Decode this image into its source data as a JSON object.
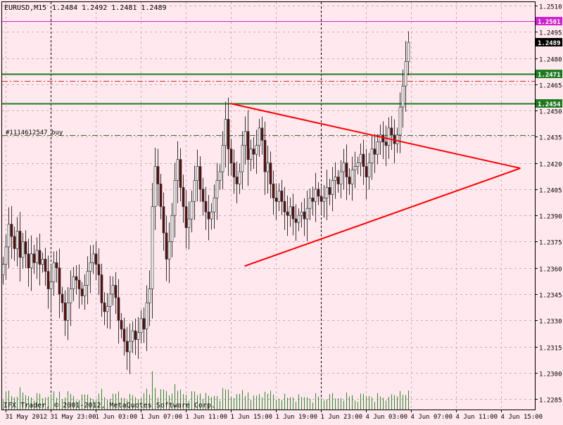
{
  "header": {
    "symbol_timeframe": "EURUSD,M15",
    "ohlc": "1.2484 1.2492 1.2481 1.2489"
  },
  "footer": {
    "copyright": "IFX Trader, © 2001-2012, MetaQuotes Software Corp."
  },
  "order_label": "#1114612547 buy",
  "colors": {
    "background": "#ffe8ee",
    "grid": "#c8aeb4",
    "axis": "#000000",
    "bull_candle": "#ffffff",
    "bear_candle": "#5a0a0a",
    "wick": "#333333",
    "volume": "#2d8a2d",
    "trend_line": "#ff0000",
    "support_level": "#1f7a1f",
    "alert_level": "#cc22cc",
    "order_line": "#2f6f2f",
    "stop_line": "#cc3333",
    "current_price_bg": "#000000",
    "price_tag_text": "#ffffff"
  },
  "chart_data": {
    "type": "candlestick",
    "symbol": "EURUSD",
    "timeframe": "M15",
    "ylim": [
      1.2279,
      1.2512
    ],
    "y_ticks": [
      "1.2510",
      "1.2495",
      "1.2480",
      "1.2465",
      "1.2450",
      "1.2435",
      "1.2420",
      "1.2405",
      "1.2390",
      "1.2375",
      "1.2360",
      "1.2345",
      "1.2330",
      "1.2315",
      "1.2300",
      "1.2285"
    ],
    "x_ticks": [
      {
        "label": "31 May 2012",
        "bar": 1
      },
      {
        "label": "31 May 23:00",
        "bar": 17
      },
      {
        "label": "1 Jun 03:00",
        "bar": 33
      },
      {
        "label": "1 Jun 07:00",
        "bar": 49
      },
      {
        "label": "1 Jun 11:00",
        "bar": 65
      },
      {
        "label": "1 Jun 15:00",
        "bar": 81
      },
      {
        "label": "1 Jun 19:00",
        "bar": 97
      },
      {
        "label": "1 Jun 23:00",
        "bar": 113
      },
      {
        "label": "4 Jun 03:00",
        "bar": 129
      },
      {
        "label": "4 Jun 07:00",
        "bar": 145
      },
      {
        "label": "4 Jun 11:00",
        "bar": 161
      },
      {
        "label": "4 Jun 15:00",
        "bar": 177
      }
    ],
    "grid_v_bars": [
      17,
      113
    ],
    "closes": [
      1.2362,
      1.2372,
      1.2385,
      1.2378,
      1.2371,
      1.2381,
      1.2366,
      1.2375,
      1.2368,
      1.236,
      1.2368,
      1.2363,
      1.237,
      1.2362,
      1.2365,
      1.2358,
      1.2348,
      1.2352,
      1.2363,
      1.236,
      1.2345,
      1.234,
      1.233,
      1.234,
      1.2348,
      1.2355,
      1.2353,
      1.2348,
      1.2344,
      1.235,
      1.2358,
      1.2363,
      1.2368,
      1.2362,
      1.2356,
      1.234,
      1.2335,
      1.2338,
      1.2345,
      1.235,
      1.2343,
      1.233,
      1.2325,
      1.2318,
      1.2312,
      1.2318,
      1.2324,
      1.2319,
      1.2323,
      1.2331,
      1.2325,
      1.234,
      1.2348,
      1.2395,
      1.2418,
      1.2408,
      1.2395,
      1.238,
      1.2365,
      1.2375,
      1.239,
      1.241,
      1.2422,
      1.2406,
      1.2395,
      1.2383,
      1.2388,
      1.2398,
      1.241,
      1.2418,
      1.2405,
      1.2398,
      1.2392,
      1.2388,
      1.2392,
      1.24,
      1.241,
      1.2415,
      1.243,
      1.2445,
      1.2428,
      1.242,
      1.2412,
      1.2408,
      1.2415,
      1.243,
      1.2438,
      1.2422,
      1.2428,
      1.2425,
      1.243,
      1.244,
      1.2433,
      1.2415,
      1.242,
      1.2408,
      1.24,
      1.2398,
      1.2404,
      1.2398,
      1.2392,
      1.239,
      1.2395,
      1.2388,
      1.2386,
      1.239,
      1.2392,
      1.2388,
      1.2394,
      1.24,
      1.2398,
      1.2405,
      1.2401,
      1.2398,
      1.24,
      1.2406,
      1.2402,
      1.241,
      1.2412,
      1.2408,
      1.2415,
      1.242,
      1.2412,
      1.2408,
      1.2416,
      1.2418,
      1.242,
      1.2425,
      1.2418,
      1.2412,
      1.242,
      1.2428,
      1.2425,
      1.2432,
      1.2436,
      1.2432,
      1.243,
      1.244,
      1.2436,
      1.2431,
      1.2436,
      1.2452,
      1.2464,
      1.2478,
      1.2489
    ],
    "opens": [
      1.2356,
      1.2362,
      1.2372,
      1.2385,
      1.2378,
      1.2371,
      1.2381,
      1.2366,
      1.2375,
      1.2368,
      1.236,
      1.2368,
      1.2363,
      1.237,
      1.2362,
      1.2365,
      1.2358,
      1.2348,
      1.2352,
      1.2363,
      1.236,
      1.2345,
      1.234,
      1.233,
      1.234,
      1.2348,
      1.2355,
      1.2353,
      1.2348,
      1.2344,
      1.235,
      1.2358,
      1.2363,
      1.2368,
      1.2362,
      1.2356,
      1.234,
      1.2335,
      1.2338,
      1.2345,
      1.235,
      1.2343,
      1.233,
      1.2325,
      1.2318,
      1.2312,
      1.2318,
      1.2324,
      1.2319,
      1.2323,
      1.2331,
      1.2325,
      1.234,
      1.2348,
      1.2395,
      1.2418,
      1.2408,
      1.2395,
      1.238,
      1.2365,
      1.2375,
      1.239,
      1.241,
      1.2422,
      1.2406,
      1.2395,
      1.2383,
      1.2388,
      1.2398,
      1.241,
      1.2418,
      1.2405,
      1.2398,
      1.2392,
      1.2388,
      1.2392,
      1.24,
      1.241,
      1.2415,
      1.243,
      1.2445,
      1.2428,
      1.242,
      1.2412,
      1.2408,
      1.2415,
      1.243,
      1.2438,
      1.2422,
      1.2428,
      1.2425,
      1.243,
      1.244,
      1.2433,
      1.2415,
      1.242,
      1.2408,
      1.24,
      1.2398,
      1.2404,
      1.2398,
      1.2392,
      1.239,
      1.2395,
      1.2388,
      1.2386,
      1.239,
      1.2392,
      1.2388,
      1.2394,
      1.24,
      1.2398,
      1.2405,
      1.2401,
      1.2398,
      1.24,
      1.2406,
      1.2402,
      1.241,
      1.2412,
      1.2408,
      1.2415,
      1.242,
      1.2412,
      1.2408,
      1.2416,
      1.2418,
      1.242,
      1.2425,
      1.2418,
      1.2412,
      1.242,
      1.2428,
      1.2425,
      1.2432,
      1.2436,
      1.2432,
      1.243,
      1.244,
      1.2436,
      1.2431,
      1.2436,
      1.2452,
      1.2464,
      1.2478
    ]
  },
  "levels": [
    {
      "name": "alert",
      "price": 1.2501,
      "label": "1.2501",
      "style": "solid"
    },
    {
      "name": "resistance-upper",
      "price": 1.2471,
      "label": "1.2471",
      "style": "solid"
    },
    {
      "name": "stop",
      "price": 1.2467,
      "label": "",
      "style": "dashdot"
    },
    {
      "name": "resistance-lower",
      "price": 1.2454,
      "label": "1.2454",
      "style": "solid"
    },
    {
      "name": "order",
      "price": 1.2436,
      "label": "",
      "style": "dashdot"
    }
  ],
  "current_price": {
    "label": "1.2489",
    "price": 1.2489
  },
  "trend_lines": [
    {
      "from_bar": 81,
      "from_price": 1.2454,
      "to_bar": 184,
      "to_price": 1.2417
    },
    {
      "from_bar": 86,
      "from_price": 1.2361,
      "to_bar": 184,
      "to_price": 1.2417
    }
  ]
}
